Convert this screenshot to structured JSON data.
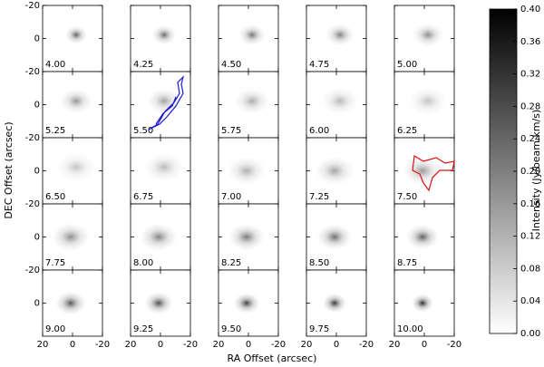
{
  "chart_data": {
    "type": "channel_map",
    "xlabel": "RA Offset (arcsec)",
    "ylabel": "DEC Offset (arcsec)",
    "xlim": [
      20,
      -20
    ],
    "xticks": [
      20,
      0,
      -20
    ],
    "ylim": [
      20,
      -20
    ],
    "yticks": [
      -20,
      0
    ],
    "columns": 5,
    "channels": [
      {
        "value": 4.0,
        "label": "4.00"
      },
      {
        "value": 4.25,
        "label": "4.25"
      },
      {
        "value": 4.5,
        "label": "4.50"
      },
      {
        "value": 4.75,
        "label": "4.75"
      },
      {
        "value": 5.0,
        "label": "5.00"
      },
      {
        "value": 5.25,
        "label": "5.25"
      },
      {
        "value": 5.5,
        "label": "5.50"
      },
      {
        "value": 5.75,
        "label": "5.75"
      },
      {
        "value": 6.0,
        "label": "6.00"
      },
      {
        "value": 6.25,
        "label": "6.25"
      },
      {
        "value": 6.5,
        "label": "6.50"
      },
      {
        "value": 6.75,
        "label": "6.75"
      },
      {
        "value": 7.0,
        "label": "7.00"
      },
      {
        "value": 7.25,
        "label": "7.25"
      },
      {
        "value": 7.5,
        "label": "7.50"
      },
      {
        "value": 7.75,
        "label": "7.75"
      },
      {
        "value": 8.0,
        "label": "8.00"
      },
      {
        "value": 8.25,
        "label": "8.25"
      },
      {
        "value": 8.5,
        "label": "8.50"
      },
      {
        "value": 8.75,
        "label": "8.75"
      },
      {
        "value": 9.0,
        "label": "9.00"
      },
      {
        "value": 9.25,
        "label": "9.25"
      },
      {
        "value": 9.5,
        "label": "9.50"
      },
      {
        "value": 9.75,
        "label": "9.75"
      },
      {
        "value": 10.0,
        "label": "10.00"
      }
    ],
    "colorbar": {
      "label": "Intensity (Jy/beam km/s)",
      "lim": [
        0,
        0.4
      ],
      "ticks": [
        {
          "value": 0,
          "label": "0.00"
        },
        {
          "value": 0.04,
          "label": "0.04"
        },
        {
          "value": 0.08,
          "label": "0.08"
        },
        {
          "value": 0.12,
          "label": "0.12"
        },
        {
          "value": 0.16,
          "label": "0.16"
        },
        {
          "value": 0.2,
          "label": "0.20"
        },
        {
          "value": 0.24,
          "label": "0.24"
        },
        {
          "value": 0.28,
          "label": "0.28"
        },
        {
          "value": 0.32,
          "label": "0.32"
        },
        {
          "value": 0.36,
          "label": "0.36"
        },
        {
          "value": 0.4,
          "label": "0.40"
        }
      ]
    }
  }
}
